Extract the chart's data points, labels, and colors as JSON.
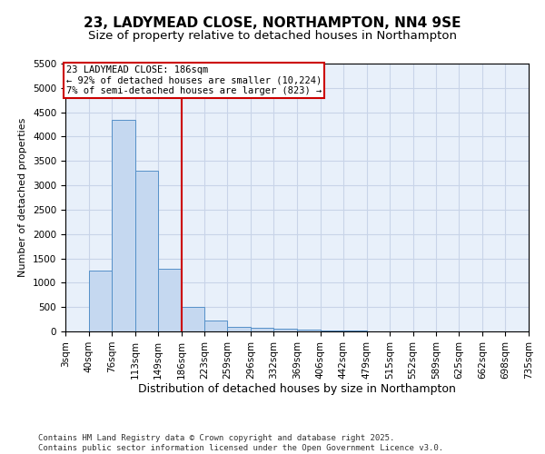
{
  "title": "23, LADYMEAD CLOSE, NORTHAMPTON, NN4 9SE",
  "subtitle": "Size of property relative to detached houses in Northampton",
  "xlabel": "Distribution of detached houses by size in Northampton",
  "ylabel": "Number of detached properties",
  "bin_edges": [
    3,
    40,
    76,
    113,
    149,
    186,
    223,
    259,
    296,
    332,
    369,
    406,
    442,
    479,
    515,
    552,
    589,
    625,
    662,
    698,
    735
  ],
  "bar_heights": [
    0,
    1250,
    4350,
    3300,
    1280,
    500,
    230,
    100,
    80,
    50,
    30,
    20,
    10,
    8,
    5,
    4,
    3,
    2,
    1,
    1
  ],
  "bar_color": "#c5d8f0",
  "bar_edgecolor": "#5590c8",
  "red_line_x": 186,
  "ylim": [
    0,
    5500
  ],
  "yticks": [
    0,
    500,
    1000,
    1500,
    2000,
    2500,
    3000,
    3500,
    4000,
    4500,
    5000,
    5500
  ],
  "annotation_title": "23 LADYMEAD CLOSE: 186sqm",
  "annotation_line1": "← 92% of detached houses are smaller (10,224)",
  "annotation_line2": "7% of semi-detached houses are larger (823) →",
  "annotation_box_color": "#ffffff",
  "annotation_border_color": "#cc0000",
  "grid_color": "#c8d4e8",
  "background_color": "#e8f0fa",
  "footer_line1": "Contains HM Land Registry data © Crown copyright and database right 2025.",
  "footer_line2": "Contains public sector information licensed under the Open Government Licence v3.0.",
  "title_fontsize": 11,
  "subtitle_fontsize": 9.5,
  "xlabel_fontsize": 9,
  "ylabel_fontsize": 8,
  "tick_fontsize": 7.5,
  "footer_fontsize": 6.5,
  "ann_fontsize": 7.5
}
